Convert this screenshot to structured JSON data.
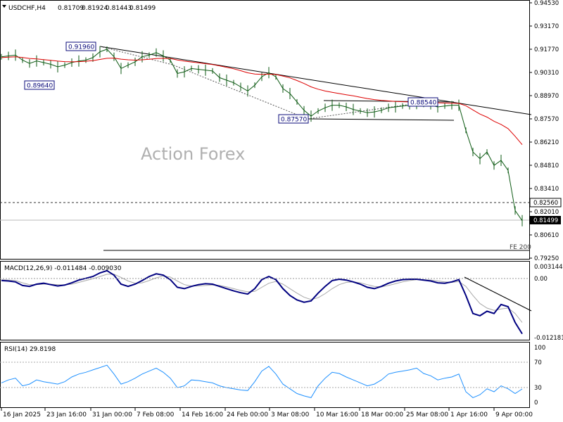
{
  "symbol": "USDCHF,H4",
  "ohlc": {
    "open": "0.81709",
    "high": "0.81924",
    "low": "0.81443",
    "close": "0.81499"
  },
  "watermark": "Action Forex",
  "colors": {
    "price": "#0d5a13",
    "ma": "#dd0000",
    "trendline": "#000000",
    "dotted": "#555555",
    "label_box": "#0a0a7a",
    "macd_main": "#000080",
    "macd_signal": "#a8a8a8",
    "rsi": "#1e90ff",
    "grid": "#000000",
    "current_bg": "#000000",
    "watermark": "#b0b0b0"
  },
  "annotations": [
    {
      "text": "0.91960"
    },
    {
      "text": "0.89640"
    },
    {
      "text": "0.87570"
    },
    {
      "text": "0.88540"
    },
    {
      "text": "FE 200"
    }
  ],
  "price_axis": [
    "0.94530",
    "0.93170",
    "0.91770",
    "0.90310",
    "0.88970",
    "0.87570",
    "0.86210",
    "0.84810",
    "0.83410",
    "0.82010",
    "0.80610",
    "0.79250"
  ],
  "reference_level": "0.82560",
  "current_price": "0.81499",
  "macd": {
    "label": "MACD(12,26,9) -0.011484 -0.009030",
    "axis": [
      "0.003144",
      "0.00",
      "-0.012181"
    ]
  },
  "rsi": {
    "label": "RSI(14) 29.8198",
    "axis": [
      "100",
      "70",
      "30",
      "0"
    ]
  },
  "time_axis": [
    "16 Jan 2025",
    "23 Jan 16:00",
    "31 Jan 00:00",
    "7 Feb 08:00",
    "14 Feb 16:00",
    "24 Feb 00:00",
    "3 Mar 08:00",
    "10 Mar 16:00",
    "18 Mar 00:00",
    "25 Mar 08:00",
    "1 Apr 16:00",
    "9 Apr 00:00"
  ],
  "chart_data": [
    {
      "type": "line",
      "title": "USDCHF,H4",
      "xlabels": [
        "16 Jan 2025",
        "23 Jan 16:00",
        "31 Jan 00:00",
        "7 Feb 08:00",
        "14 Feb 16:00",
        "24 Feb 00:00",
        "3 Mar 08:00",
        "10 Mar 16:00",
        "18 Mar 00:00",
        "25 Mar 08:00",
        "1 Apr 16:00",
        "9 Apr 00:00"
      ],
      "ylim": [
        0.7925,
        0.9453
      ],
      "x": [
        0,
        10,
        20,
        30,
        40,
        50,
        60,
        70,
        80,
        90,
        100,
        110,
        120,
        130,
        140,
        150,
        160,
        170,
        180,
        190,
        200,
        210,
        220,
        230,
        240,
        250,
        260,
        270,
        280,
        290,
        300,
        310,
        320,
        330,
        340,
        350,
        360,
        370,
        380,
        390,
        400,
        410,
        420,
        430,
        440,
        450,
        460,
        470,
        480,
        490,
        500,
        510,
        520,
        530,
        540,
        550,
        560,
        570,
        580,
        590,
        600,
        610,
        620,
        630,
        640,
        650,
        660,
        670,
        680,
        690,
        700,
        710,
        720,
        730,
        740
      ],
      "series": [
        {
          "name": "USDCHF,H4",
          "values": [
            0.913,
            0.9135,
            0.914,
            0.911,
            0.909,
            0.9105,
            0.9095,
            0.9085,
            0.907,
            0.908,
            0.9095,
            0.9105,
            0.911,
            0.9125,
            0.916,
            0.9175,
            0.913,
            0.906,
            0.908,
            0.91,
            0.913,
            0.914,
            0.9155,
            0.9135,
            0.911,
            0.903,
            0.904,
            0.906,
            0.9055,
            0.905,
            0.9045,
            0.9005,
            0.899,
            0.8975,
            0.895,
            0.8925,
            0.896,
            0.901,
            0.9035,
            0.901,
            0.894,
            0.891,
            0.886,
            0.881,
            0.8775,
            0.8805,
            0.8825,
            0.884,
            0.884,
            0.883,
            0.8815,
            0.8805,
            0.8795,
            0.88,
            0.881,
            0.8825,
            0.883,
            0.8835,
            0.884,
            0.885,
            0.8845,
            0.884,
            0.883,
            0.8835,
            0.884,
            0.884,
            0.869,
            0.856,
            0.852,
            0.856,
            0.848,
            0.851,
            0.845,
            0.821,
            0.8149
          ]
        },
        {
          "values": [
            0.9125,
            0.9128,
            0.913,
            0.9126,
            0.912,
            0.9117,
            0.9113,
            0.9109,
            0.9104,
            0.9101,
            0.91,
            0.9101,
            0.9103,
            0.9107,
            0.9114,
            0.9121,
            0.9122,
            0.9116,
            0.9112,
            0.911,
            0.9112,
            0.9115,
            0.9119,
            0.9121,
            0.912,
            0.9111,
            0.9104,
            0.9099,
            0.9094,
            0.9089,
            0.9084,
            0.9076,
            0.9067,
            0.9058,
            0.9047,
            0.9034,
            0.9027,
            0.9025,
            0.9026,
            0.9024,
            0.9015,
            0.9004,
            0.8988,
            0.897,
            0.895,
            0.8936,
            0.8925,
            0.8917,
            0.891,
            0.8903,
            0.8896,
            0.8888,
            0.888,
            0.8874,
            0.8869,
            0.8866,
            0.8863,
            0.8861,
            0.886,
            0.8859,
            0.8858,
            0.8857,
            0.8855,
            0.8853,
            0.8852,
            0.8851,
            0.8837,
            0.8812,
            0.8787,
            0.8769,
            0.8744,
            0.8725,
            0.87,
            0.8654,
            0.8604
          ]
        }
      ]
    },
    {
      "type": "line",
      "title": "MACD(12,26,9) -0.011484 -0.009030",
      "ylim": [
        -0.0125,
        0.0034
      ],
      "series": [
        {
          "values": [
            0.0003,
            0.0002,
            0.0,
            -0.0008,
            -0.001,
            -0.0005,
            -0.0003,
            -0.0006,
            -0.0009,
            -0.0007,
            -0.0002,
            0.0004,
            0.0008,
            0.0012,
            0.002,
            0.0025,
            0.0015,
            -0.0005,
            -0.001,
            -0.0005,
            0.0003,
            0.0012,
            0.0018,
            0.0015,
            0.0005,
            -0.0012,
            -0.0015,
            -0.001,
            -0.0006,
            -0.0004,
            -0.0005,
            -0.001,
            -0.0015,
            -0.002,
            -0.0024,
            -0.0027,
            -0.0015,
            0.0005,
            0.0012,
            0.0005,
            -0.0015,
            -0.003,
            -0.004,
            -0.0045,
            -0.0042,
            -0.0025,
            -0.001,
            0.0003,
            0.0006,
            0.0004,
            0.0,
            -0.0005,
            -0.0012,
            -0.0015,
            -0.001,
            -0.0003,
            0.0002,
            0.0005,
            0.0006,
            0.0006,
            0.0004,
            0.0002,
            -0.0002,
            -0.0003,
            0.0,
            0.0005,
            -0.003,
            -0.007,
            -0.0075,
            -0.0065,
            -0.007,
            -0.005,
            -0.0055,
            -0.009,
            -0.0115
          ]
        },
        {
          "values": [
            0.0005,
            0.0004,
            0.0003,
            -0.0002,
            -0.0006,
            -0.0006,
            -0.0005,
            -0.0005,
            -0.0006,
            -0.0007,
            -0.0005,
            -0.0001,
            0.0003,
            0.0007,
            0.0012,
            0.0017,
            0.0017,
            0.001,
            0.0002,
            -0.0003,
            -0.0002,
            0.0003,
            0.0009,
            0.0013,
            0.0011,
            0.0002,
            -0.0006,
            -0.0009,
            -0.0009,
            -0.0008,
            -0.0007,
            -0.0008,
            -0.0011,
            -0.0015,
            -0.0019,
            -0.0022,
            -0.0021,
            -0.0012,
            -0.0003,
            0.0001,
            -0.0005,
            -0.0015,
            -0.0025,
            -0.0034,
            -0.0039,
            -0.0035,
            -0.0026,
            -0.0015,
            -0.0006,
            -0.0001,
            0.0,
            -0.0002,
            -0.0006,
            -0.001,
            -0.0011,
            -0.0008,
            -0.0004,
            0.0,
            0.0003,
            0.0005,
            0.0005,
            0.0004,
            0.0002,
            0.0,
            -0.0001,
            0.0001,
            -0.001,
            -0.003,
            -0.0048,
            -0.0058,
            -0.0063,
            -0.006,
            -0.0058,
            -0.007,
            -0.009
          ]
        }
      ]
    },
    {
      "type": "line",
      "title": "RSI(14) 29.8198",
      "ylim": [
        0,
        100
      ],
      "series": [
        {
          "values": [
            40,
            45,
            48,
            35,
            38,
            45,
            42,
            40,
            38,
            42,
            50,
            55,
            58,
            62,
            66,
            70,
            55,
            38,
            42,
            48,
            55,
            60,
            65,
            58,
            48,
            32,
            35,
            45,
            44,
            42,
            40,
            35,
            32,
            30,
            28,
            27,
            42,
            60,
            68,
            55,
            38,
            30,
            22,
            18,
            15,
            35,
            48,
            58,
            56,
            50,
            45,
            40,
            35,
            38,
            45,
            55,
            58,
            60,
            62,
            65,
            56,
            52,
            45,
            48,
            50,
            55,
            25,
            15,
            20,
            30,
            25,
            35,
            30,
            22,
            29.82
          ]
        }
      ]
    }
  ]
}
